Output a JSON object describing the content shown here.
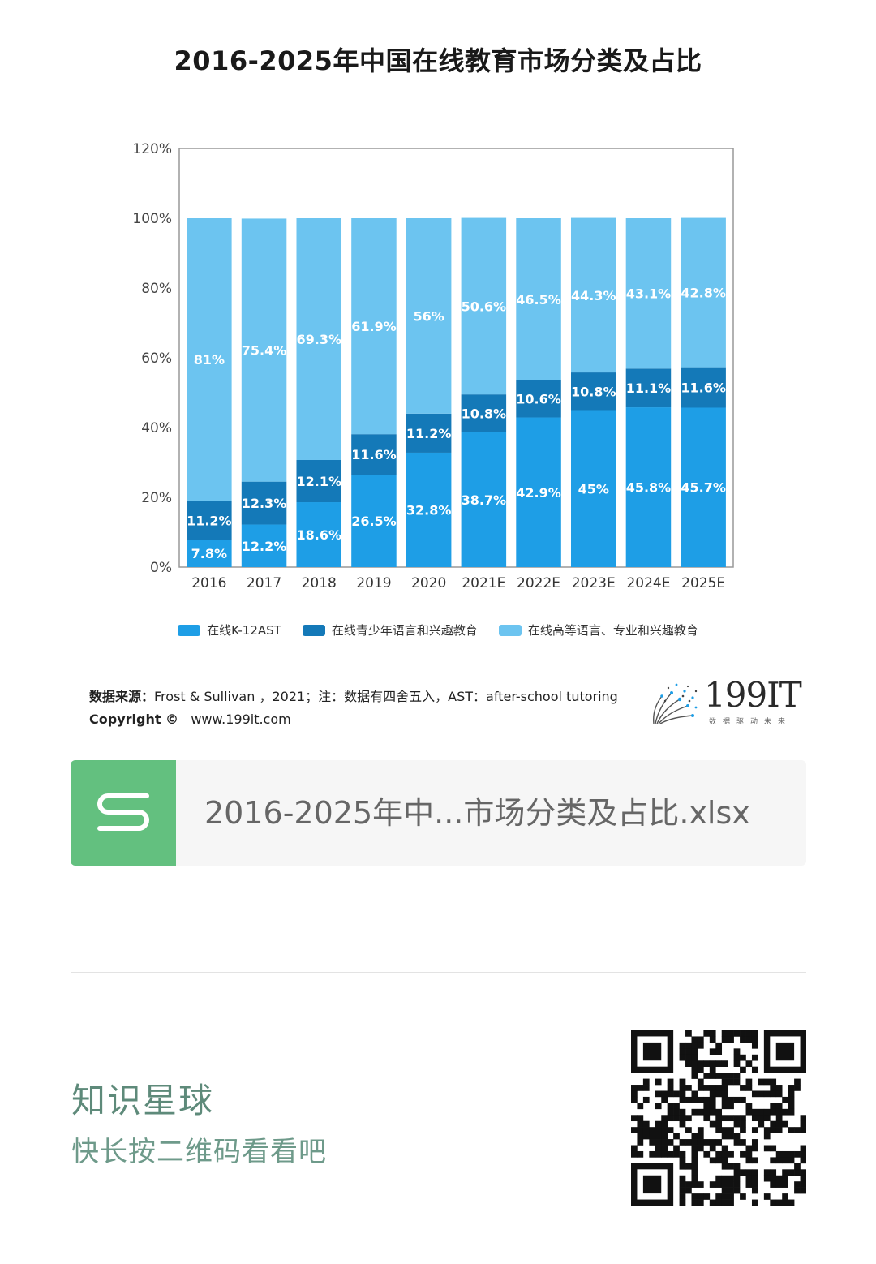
{
  "chart_data": {
    "type": "bar",
    "stacked": true,
    "title": "2016-2025年中国在线教育市场分类及占比",
    "categories": [
      "2016",
      "2017",
      "2018",
      "2019",
      "2020",
      "2021E",
      "2022E",
      "2023E",
      "2024E",
      "2025E"
    ],
    "ylim": [
      0,
      120
    ],
    "yticks": [
      "0%",
      "20%",
      "40%",
      "60%",
      "80%",
      "100%",
      "120%"
    ],
    "ytick_values": [
      0,
      20,
      40,
      60,
      80,
      100,
      120
    ],
    "grid": false,
    "legend_position": "bottom",
    "series": [
      {
        "name": "在线K-12AST",
        "color": "#1e9ee6",
        "values": [
          7.8,
          12.2,
          18.6,
          26.5,
          32.8,
          38.7,
          42.9,
          45,
          45.8,
          45.7
        ],
        "labels": [
          "7.8%",
          "12.2%",
          "18.6%",
          "26.5%",
          "32.8%",
          "38.7%",
          "42.9%",
          "45%",
          "45.8%",
          "45.7%"
        ]
      },
      {
        "name": "在线青少年语言和兴趣教育",
        "color": "#1479b8",
        "values": [
          11.2,
          12.3,
          12.1,
          11.6,
          11.2,
          10.8,
          10.6,
          10.8,
          11.1,
          11.6
        ],
        "labels": [
          "11.2%",
          "12.3%",
          "12.1%",
          "11.6%",
          "11.2%",
          "10.8%",
          "10.6%",
          "10.8%",
          "11.1%",
          "11.6%"
        ]
      },
      {
        "name": "在线高等语言、专业和兴趣教育",
        "color": "#6cc4f0",
        "values": [
          81,
          75.4,
          69.3,
          61.9,
          56,
          50.6,
          46.5,
          44.3,
          43.1,
          42.8
        ],
        "labels": [
          "81%",
          "75.4%",
          "69.3%",
          "61.9%",
          "56%",
          "50.6%",
          "46.5%",
          "44.3%",
          "43.1%",
          "42.8%"
        ]
      }
    ]
  },
  "source": {
    "label": "数据来源：",
    "text": "Frost & Sullivan ，2021；注：数据有四舍五入，AST：after-school tutoring",
    "copyright_label": "Copyright ©",
    "site": "www.199it.com"
  },
  "brand": {
    "name": "199IT",
    "tagline": "数据驱动未来"
  },
  "file_card": {
    "icon_letter": "S",
    "icon_color": "#63c07f",
    "file_name": "2016-2025年中...市场分类及占比.xlsx"
  },
  "footer": {
    "title": "知识星球",
    "subtitle": "快长按二维码看看吧"
  }
}
